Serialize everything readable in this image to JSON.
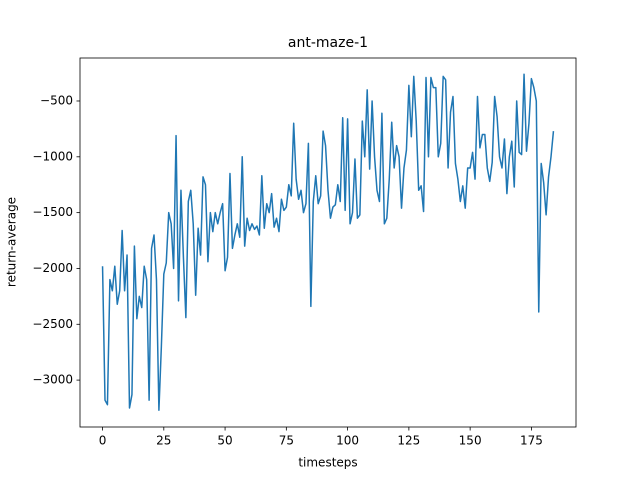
{
  "chart_data": {
    "type": "line",
    "title": "ant-maze-1",
    "x_label": "timesteps",
    "y_label": "return-average",
    "x": [
      0,
      1,
      2,
      3,
      4,
      5,
      6,
      7,
      8,
      9,
      10,
      11,
      12,
      13,
      14,
      15,
      16,
      17,
      18,
      19,
      20,
      21,
      22,
      23,
      24,
      25,
      26,
      27,
      28,
      29,
      30,
      31,
      32,
      33,
      34,
      35,
      36,
      37,
      38,
      39,
      40,
      41,
      42,
      43,
      44,
      45,
      46,
      47,
      48,
      49,
      50,
      51,
      52,
      53,
      54,
      55,
      56,
      57,
      58,
      59,
      60,
      61,
      62,
      63,
      64,
      65,
      66,
      67,
      68,
      69,
      70,
      71,
      72,
      73,
      74,
      75,
      76,
      77,
      78,
      79,
      80,
      81,
      82,
      83,
      84,
      85,
      86,
      87,
      88,
      89,
      90,
      91,
      92,
      93,
      94,
      95,
      96,
      97,
      98,
      99,
      100,
      101,
      102,
      103,
      104,
      105,
      106,
      107,
      108,
      109,
      110,
      111,
      112,
      113,
      114,
      115,
      116,
      117,
      118,
      119,
      120,
      121,
      122,
      123,
      124,
      125,
      126,
      127,
      128,
      129,
      130,
      131,
      132,
      133,
      134,
      135,
      136,
      137,
      138,
      139,
      140,
      141,
      142,
      143,
      144,
      145,
      146,
      147,
      148,
      149,
      150,
      151,
      152,
      153,
      154,
      155,
      156,
      157,
      158,
      159,
      160,
      161,
      162,
      163,
      164,
      165,
      166,
      167,
      168,
      169,
      170,
      171,
      172,
      173,
      174,
      175,
      176,
      177,
      178,
      179,
      180,
      181,
      182,
      183,
      184
    ],
    "series": [
      {
        "name": "return-average",
        "color": "#1f77b4",
        "values": [
          -1980,
          -3180,
          -3220,
          -2100,
          -2200,
          -1980,
          -2320,
          -2200,
          -1660,
          -2200,
          -1880,
          -3250,
          -3130,
          -1800,
          -2450,
          -2250,
          -2350,
          -1980,
          -2100,
          -3180,
          -1820,
          -1700,
          -2100,
          -3270,
          -2700,
          -2050,
          -1950,
          -1500,
          -1600,
          -2000,
          -810,
          -2290,
          -1300,
          -1900,
          -2440,
          -1400,
          -1300,
          -1600,
          -2240,
          -1640,
          -1880,
          -1180,
          -1250,
          -1940,
          -1500,
          -1670,
          -1500,
          -1600,
          -1500,
          -1420,
          -2020,
          -1900,
          -1150,
          -1820,
          -1700,
          -1600,
          -1720,
          -1000,
          -1800,
          -1550,
          -1660,
          -1600,
          -1650,
          -1620,
          -1700,
          -1170,
          -1640,
          -1420,
          -1500,
          -1330,
          -1630,
          -1550,
          -1670,
          -1380,
          -1480,
          -1450,
          -1250,
          -1350,
          -700,
          -1200,
          -1380,
          -1300,
          -1500,
          -1420,
          -880,
          -2340,
          -1400,
          -1170,
          -1420,
          -1350,
          -770,
          -900,
          -1300,
          -1550,
          -1450,
          -1430,
          -1250,
          -1400,
          -650,
          -1480,
          -660,
          -1600,
          -1500,
          -1020,
          -1550,
          -1520,
          -680,
          -1000,
          -400,
          -1110,
          -500,
          -1000,
          -1300,
          -1400,
          -610,
          -1600,
          -1550,
          -1200,
          -690,
          -1100,
          -900,
          -1000,
          -1460,
          -1100,
          -940,
          -360,
          -820,
          -280,
          -680,
          -1300,
          -1260,
          -1490,
          -290,
          -1000,
          -290,
          -380,
          -380,
          -1000,
          -880,
          -280,
          -310,
          -1100,
          -600,
          -460,
          -1060,
          -1200,
          -1400,
          -1260,
          -1460,
          -1100,
          -1100,
          -960,
          -1200,
          -460,
          -920,
          -800,
          -800,
          -1100,
          -1220,
          -1050,
          -460,
          -640,
          -1000,
          -1100,
          -840,
          -1330,
          -1000,
          -860,
          -1270,
          -500,
          -960,
          -980,
          -260,
          -950,
          -700,
          -300,
          -380,
          -500,
          -2390,
          -1060,
          -1230,
          -1520,
          -1180,
          -1000,
          -770
        ]
      }
    ],
    "xlim": [
      -9.2,
      193.2
    ],
    "xticks": [
      0,
      25,
      50,
      75,
      100,
      125,
      150,
      175
    ],
    "ylim": [
      -3420,
      -115
    ],
    "yticks": [
      {
        "value": -3000,
        "label": "−3000"
      },
      {
        "value": -2500,
        "label": "−2500"
      },
      {
        "value": -2000,
        "label": "−2000"
      },
      {
        "value": -1500,
        "label": "−1500"
      },
      {
        "value": -1000,
        "label": "−1000"
      },
      {
        "value": -500,
        "label": "−500"
      }
    ],
    "grid": false
  }
}
